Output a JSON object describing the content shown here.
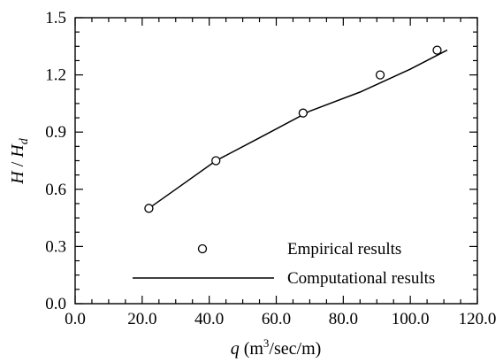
{
  "chart_data": {
    "type": "scatter",
    "xlabel": {
      "var": "q",
      "unit_pre": " (m",
      "unit_sup": "3",
      "unit_post": "/sec/m)"
    },
    "ylabel": {
      "var1": "H",
      "slash": " / ",
      "var2": "H",
      "sub": "d"
    },
    "xlim": [
      0,
      120
    ],
    "ylim": [
      0,
      1.5
    ],
    "x_ticks": [
      "0.0",
      "20.0",
      "40.0",
      "60.0",
      "80.0",
      "100.0",
      "120.0"
    ],
    "x_tick_values": [
      0,
      20,
      40,
      60,
      80,
      100,
      120
    ],
    "y_ticks": [
      "0.0",
      "0.3",
      "0.6",
      "0.9",
      "1.2",
      "1.5"
    ],
    "y_tick_values": [
      0,
      0.3,
      0.6,
      0.9,
      1.2,
      1.5
    ],
    "x_minor_step": 5,
    "y_minor_step": 0.075,
    "grid": false,
    "legend_position": "bottom-right",
    "series": [
      {
        "name": "Empirical results",
        "kind": "marker",
        "marker": "open-circle",
        "x": [
          22,
          42,
          68,
          91,
          108
        ],
        "y": [
          0.5,
          0.75,
          1.0,
          1.2,
          1.33
        ]
      },
      {
        "name": "Computational results",
        "kind": "line",
        "x": [
          22,
          30,
          42,
          55,
          70,
          85,
          100,
          111
        ],
        "y": [
          0.5,
          0.6,
          0.75,
          0.87,
          1.01,
          1.11,
          1.23,
          1.33
        ]
      }
    ]
  }
}
